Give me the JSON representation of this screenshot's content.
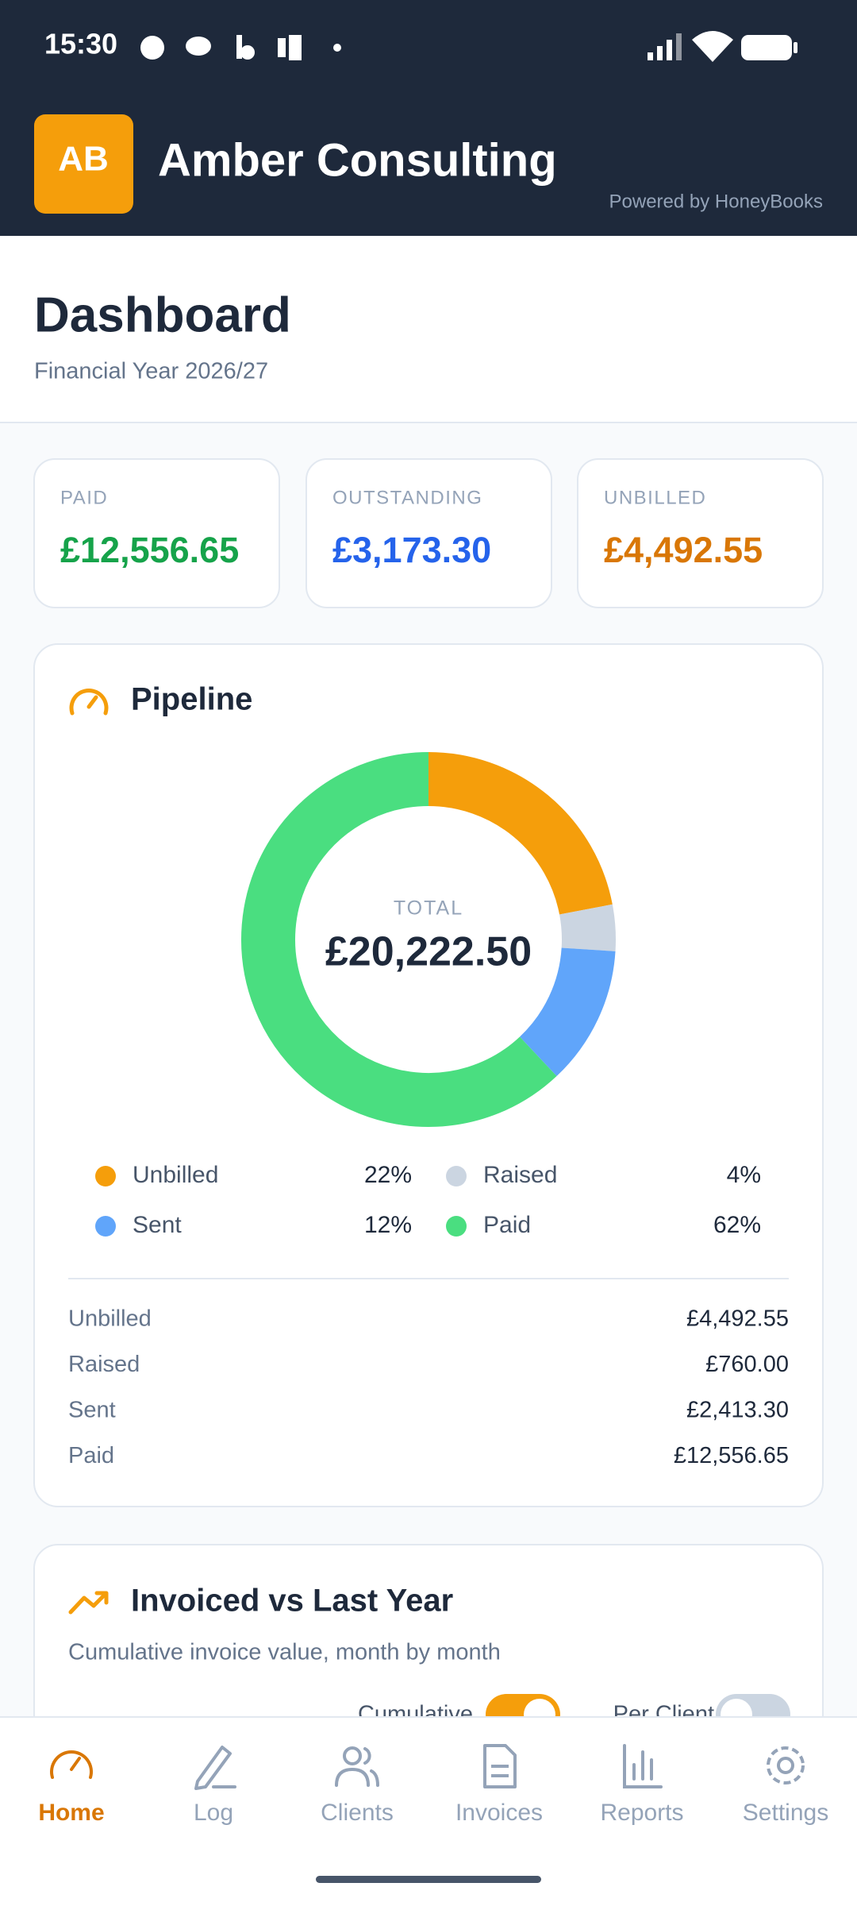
{
  "status_bar": {
    "time": "15:30"
  },
  "header": {
    "initials": "AB",
    "title": "Amber Consulting",
    "powered_by": "Powered by HoneyBooks"
  },
  "page": {
    "title": "Dashboard",
    "subtitle": "Financial Year 2026/27"
  },
  "summary": [
    {
      "label": "PAID",
      "value": "£12,556.65",
      "color": "#16a34a"
    },
    {
      "label": "OUTSTANDING",
      "value": "£3,173.30",
      "color": "#2563eb"
    },
    {
      "label": "UNBILLED",
      "value": "£4,492.55",
      "color": "#d97706"
    }
  ],
  "pipeline": {
    "title": "Pipeline",
    "total_label": "TOTAL",
    "total": "£20,222.50",
    "segments": [
      {
        "name": "Unbilled",
        "percent": 22,
        "percent_label": "22%",
        "amount": "£4,492.55",
        "color": "#f59e0b"
      },
      {
        "name": "Raised",
        "percent": 4,
        "percent_label": "4%",
        "amount": "£760.00",
        "color": "#cbd5e1"
      },
      {
        "name": "Sent",
        "percent": 12,
        "percent_label": "12%",
        "amount": "£2,413.30",
        "color": "#60a5fa"
      },
      {
        "name": "Paid",
        "percent": 62,
        "percent_label": "62%",
        "amount": "£12,556.65",
        "color": "#4ade80"
      }
    ]
  },
  "invoiced": {
    "title": "Invoiced vs Last Year",
    "subtitle": "Cumulative invoice value, month by month",
    "toggles": [
      {
        "label": "Cumulative",
        "on": true
      },
      {
        "label": "Per Client",
        "on": false
      }
    ]
  },
  "nav": [
    {
      "label": "Home",
      "active": true
    },
    {
      "label": "Log",
      "active": false
    },
    {
      "label": "Clients",
      "active": false
    },
    {
      "label": "Invoices",
      "active": false
    },
    {
      "label": "Reports",
      "active": false
    },
    {
      "label": "Settings",
      "active": false
    }
  ]
}
